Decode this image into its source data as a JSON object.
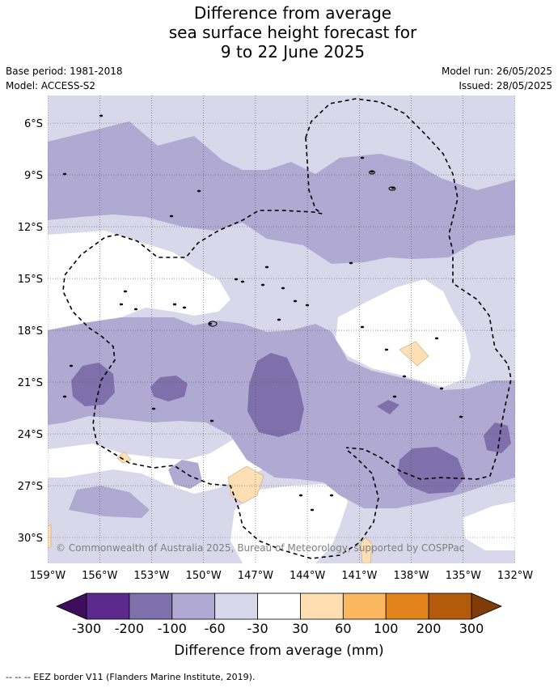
{
  "title": {
    "line1": "Difference from average",
    "line2": "sea surface height forecast for",
    "line3": "9 to 22 June 2025"
  },
  "meta_left": {
    "base_period": "Base period: 1981-2018",
    "model": "Model: ACCESS-S2"
  },
  "meta_right": {
    "model_run": "Model run: 26/05/2025",
    "issued": "Issued: 28/05/2025"
  },
  "map": {
    "lon_ticks": [
      "159°W",
      "156°W",
      "153°W",
      "150°W",
      "147°W",
      "144°W",
      "141°W",
      "138°W",
      "135°W",
      "132°W"
    ],
    "lat_ticks": [
      "6°S",
      "9°S",
      "12°S",
      "15°S",
      "18°S",
      "21°S",
      "24°S",
      "27°S",
      "30°S"
    ],
    "lon_range": [
      -159,
      -132
    ],
    "lat_range": [
      -31.5,
      -4.4
    ],
    "gridlines": true,
    "copyright": "© Commonwealth of Australia 2025, Bureau of Meteorology, supported by COSPPac"
  },
  "colorbar": {
    "title": "Difference from average (mm)",
    "ticks": [
      "-300",
      "-200",
      "-100",
      "-60",
      "-30",
      "30",
      "60",
      "100",
      "200",
      "300"
    ],
    "colors": [
      "#3f0d5e",
      "#5b2a8c",
      "#7f6faa",
      "#b0a9d1",
      "#d9d8ea",
      "#ffffff",
      "#fedfb3",
      "#fbb75f",
      "#e2841b",
      "#b35b0a",
      "#7f3b08"
    ]
  },
  "legend": {
    "eez_label": "--  --  -- EEZ border V11 (Flanders Marine Institute, 2019)."
  }
}
